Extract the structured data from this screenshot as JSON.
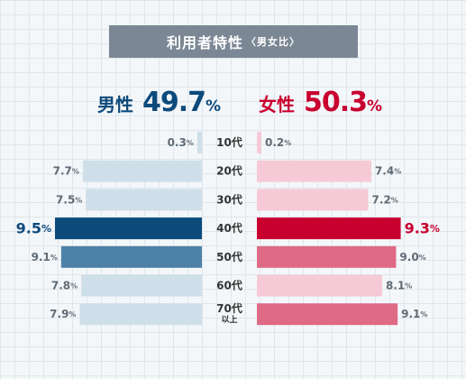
{
  "title": {
    "main": "利用者特性",
    "sub": "〈男女比〉"
  },
  "male": {
    "label": "男性",
    "total": "49.7",
    "unit": "%"
  },
  "female": {
    "label": "女性",
    "total": "50.3",
    "unit": "%"
  },
  "colors": {
    "male_pale": "#cfdfea",
    "male_mid": "#4e81a8",
    "male_dark": "#0c4a7c",
    "female_pale": "#f5cad6",
    "female_mid": "#df6a85",
    "female_dark": "#c8002f",
    "label_gray": "#5f6b75"
  },
  "chart_data": {
    "type": "bar",
    "categories": [
      "10代",
      "20代",
      "30代",
      "40代",
      "50代",
      "60代",
      "70代以上"
    ],
    "series": [
      {
        "name": "男性",
        "values": [
          0.3,
          7.7,
          7.5,
          9.5,
          9.1,
          7.8,
          7.9
        ],
        "labels": [
          "0.3",
          "7.7",
          "7.5",
          "9.5",
          "9.1",
          "7.8",
          "7.9"
        ]
      },
      {
        "name": "女性",
        "values": [
          0.2,
          7.4,
          7.2,
          9.3,
          9.0,
          8.1,
          9.1
        ],
        "labels": [
          "0.2",
          "7.4",
          "7.2",
          "9.3",
          "9.0",
          "8.1",
          "9.1"
        ]
      }
    ],
    "value_unit": "%",
    "xlim": [
      0,
      9.5
    ],
    "grid": false,
    "legend": "none"
  }
}
